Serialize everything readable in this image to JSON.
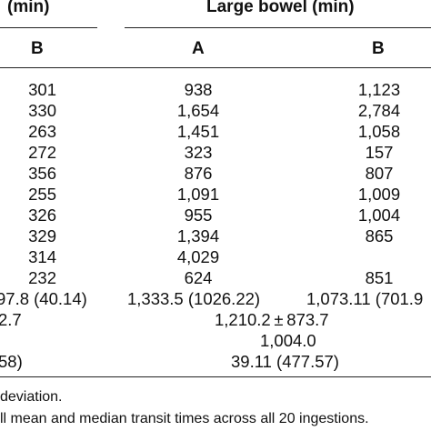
{
  "header": {
    "small_bowel_tail": "(min)",
    "large_bowel": "Large bowel (min)",
    "col_b_left": "B",
    "col_a": "A",
    "col_b_right": "B"
  },
  "rows": [
    {
      "b_small": "301",
      "a_large": "938",
      "b_large": "1,123"
    },
    {
      "b_small": "330",
      "a_large": "1,654",
      "b_large": "2,784"
    },
    {
      "b_small": "263",
      "a_large": "1,451",
      "b_large": "1,058"
    },
    {
      "b_small": "272",
      "a_large": "323",
      "b_large": "157"
    },
    {
      "b_small": "356",
      "a_large": "876",
      "b_large": "807"
    },
    {
      "b_small": "255",
      "a_large": "1,091",
      "b_large": "1,009"
    },
    {
      "b_small": "326",
      "a_large": "955",
      "b_large": "1,004"
    },
    {
      "b_small": "329",
      "a_large": "1,394",
      "b_large": "865"
    },
    {
      "b_small": "314",
      "a_large": "4,029",
      "b_large": ""
    },
    {
      "b_small": "232",
      "a_large": "624",
      "b_large": "851"
    }
  ],
  "summary": {
    "mean_small": "97.8 (40.14)",
    "mean_a_large": "1,333.5 (1026.22)",
    "mean_b_large": "1,073.11 (701.9",
    "overall_mean_small": "2.7",
    "overall_mean_large": "1,210.2 ± 873.7",
    "median_large": "1,004.0",
    "last_small": "58)",
    "last_large": "39.11 (477.57)"
  },
  "footnotes": {
    "line1": "deviation.",
    "line2": "ll mean and median transit times across all 20 ingestions."
  }
}
